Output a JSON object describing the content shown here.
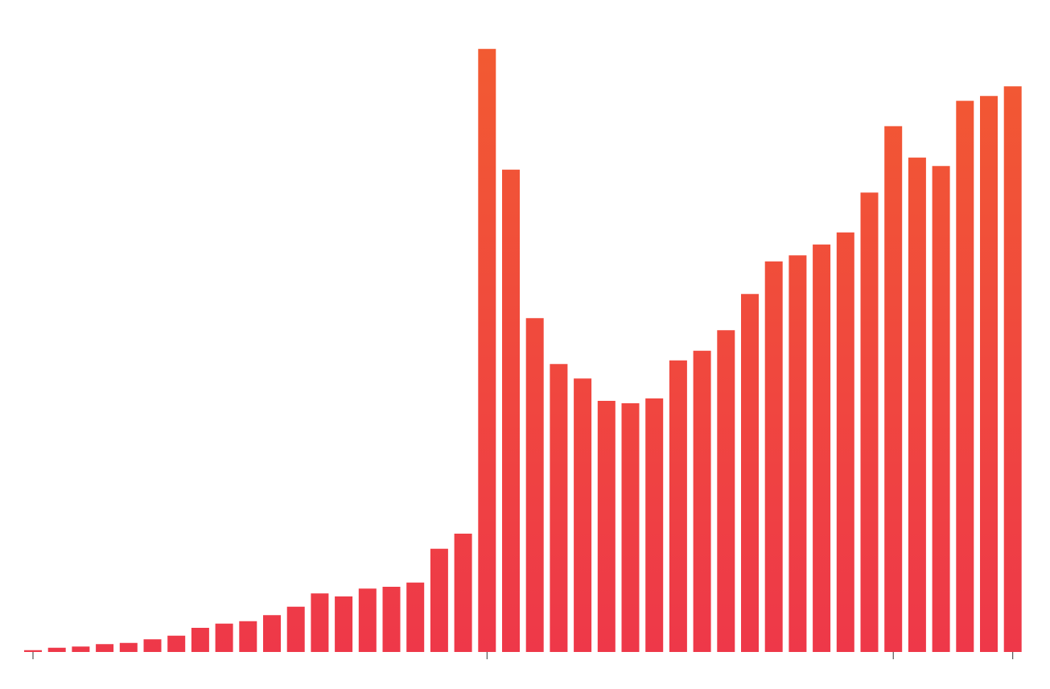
{
  "chart_data": {
    "type": "bar",
    "categories": [
      null,
      null,
      null,
      null,
      null,
      null,
      null,
      null,
      null,
      null,
      null,
      null,
      null,
      null,
      null,
      null,
      null,
      null,
      null,
      null,
      null,
      null,
      null,
      null,
      null,
      null,
      null,
      null,
      null,
      null,
      null,
      null,
      null,
      null,
      null,
      null,
      null,
      null,
      null,
      null,
      null,
      null
    ],
    "values": [
      0.3,
      0.7,
      0.9,
      1.3,
      1.5,
      2.1,
      2.7,
      4.0,
      4.7,
      5.1,
      6.1,
      7.5,
      9.7,
      9.2,
      10.5,
      10.8,
      11.5,
      17.1,
      19.6,
      99.9,
      79.9,
      55.3,
      47.7,
      45.3,
      41.6,
      41.2,
      42.0,
      48.3,
      49.9,
      53.3,
      59.3,
      64.7,
      65.7,
      67.5,
      69.5,
      76.1,
      87.1,
      81.9,
      80.5,
      91.3,
      92.1,
      93.7
    ],
    "color": [
      "#f25a32",
      "#ee3849"
    ],
    "ylim": [
      0,
      100
    ],
    "xticks": [
      0,
      19,
      36,
      41
    ]
  }
}
